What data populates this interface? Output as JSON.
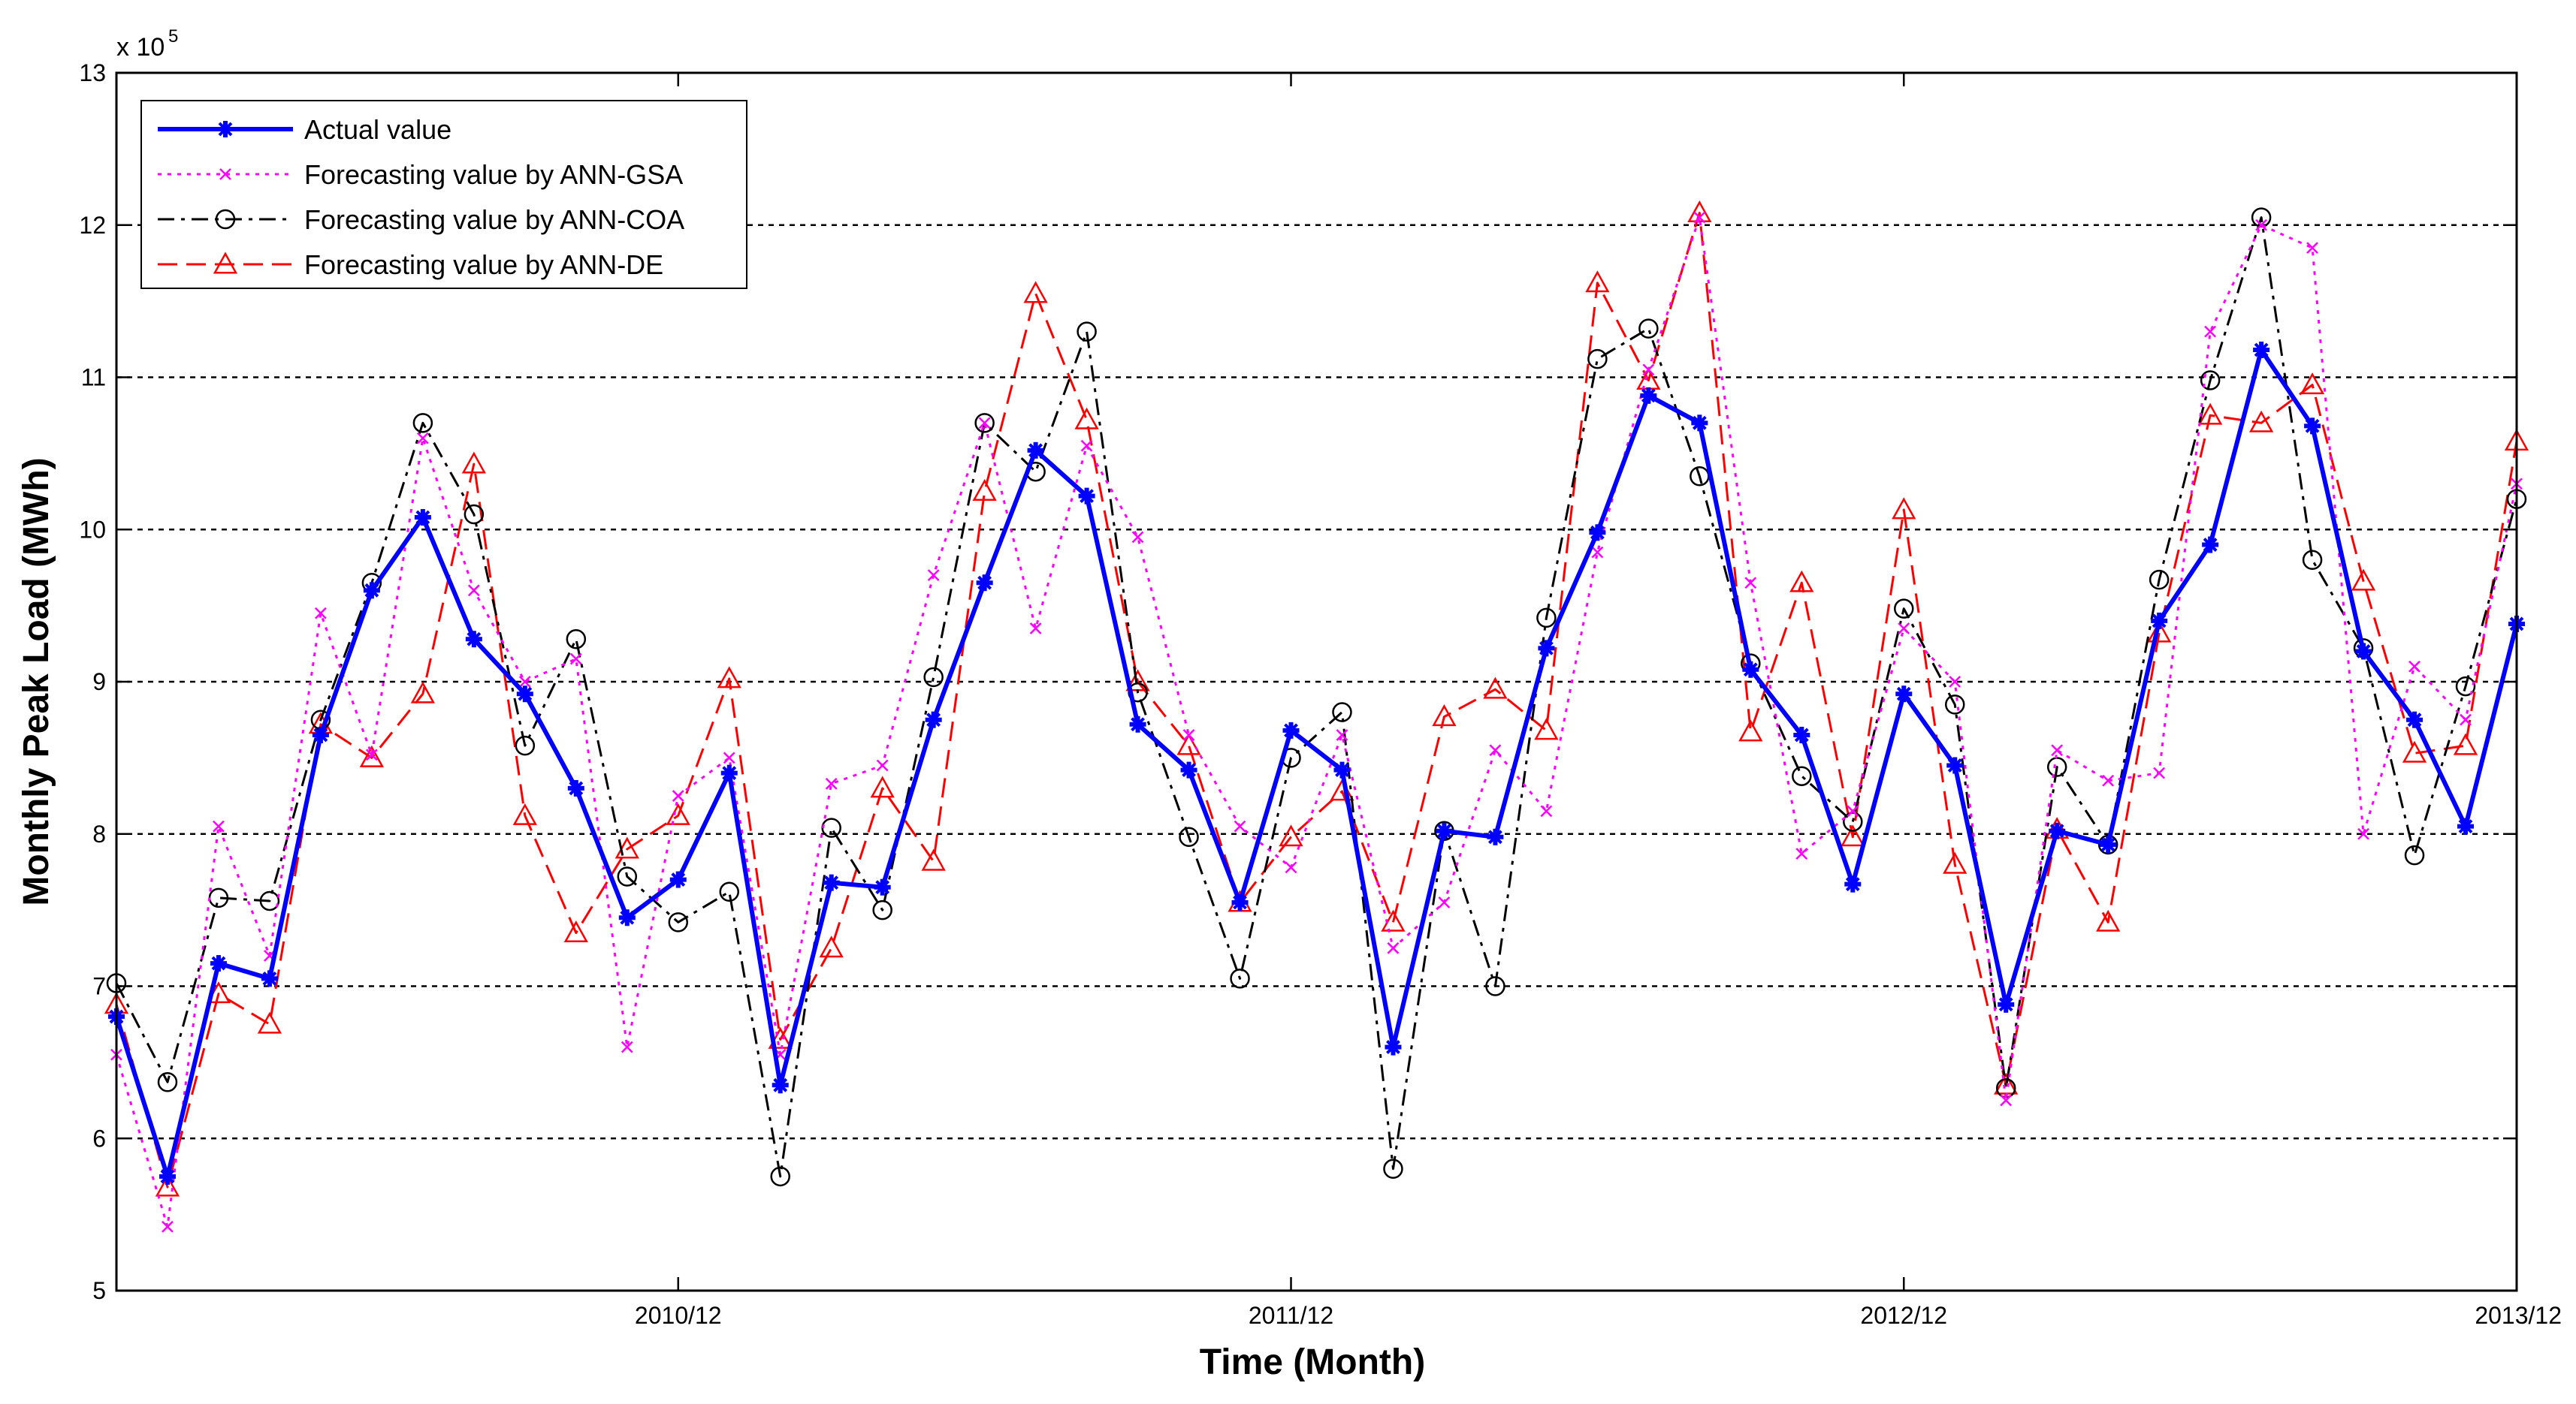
{
  "chart_data": {
    "type": "line",
    "title": "",
    "xlabel": "Time (Month)",
    "ylabel": "Monthly Peak Load (MWh)",
    "y_multiplier_label": "x 10",
    "y_multiplier_exponent": "5",
    "xlim": [
      1,
      48
    ],
    "ylim": [
      5,
      13
    ],
    "yticks": [
      5,
      6,
      7,
      8,
      9,
      10,
      11,
      12,
      13
    ],
    "ytick_labels": [
      "5",
      "6",
      "7",
      "8",
      "9",
      "10",
      "11",
      "12",
      "13"
    ],
    "xticks": [
      12,
      24,
      36,
      48
    ],
    "xtick_labels": [
      "2010/12",
      "2011/12",
      "2012/12",
      "2013/12"
    ],
    "grid": "horizontal dashed",
    "legend_position": "top-left",
    "series": [
      {
        "name": "Actual value",
        "color": "#0000ff",
        "style": "solid",
        "marker": "star",
        "values": [
          6.8,
          5.75,
          7.15,
          7.05,
          8.65,
          9.6,
          10.08,
          9.28,
          8.92,
          8.3,
          7.45,
          7.7,
          8.4,
          6.35,
          7.68,
          7.65,
          8.75,
          9.65,
          10.52,
          10.22,
          8.72,
          8.42,
          7.55,
          8.68,
          8.42,
          6.6,
          8.02,
          7.98,
          9.22,
          9.98,
          10.88,
          10.7,
          9.08,
          8.65,
          7.67,
          8.92,
          8.45,
          6.88,
          8.02,
          7.93,
          9.4,
          9.9,
          11.18,
          10.68,
          9.2,
          8.75,
          8.05,
          9.38
        ]
      },
      {
        "name": "Forecasting value by ANN-GSA",
        "color": "#ff00ff",
        "style": "dotted",
        "marker": "x",
        "values": [
          6.55,
          5.42,
          8.05,
          7.2,
          9.45,
          8.52,
          10.6,
          9.6,
          9.0,
          9.15,
          6.6,
          8.25,
          8.5,
          6.55,
          8.33,
          8.45,
          9.7,
          10.7,
          9.35,
          10.55,
          9.95,
          8.65,
          8.05,
          7.78,
          8.65,
          7.25,
          7.55,
          8.55,
          8.15,
          9.85,
          11.05,
          12.05,
          9.65,
          7.87,
          8.15,
          9.35,
          9.0,
          6.25,
          8.55,
          8.35,
          8.4,
          11.3,
          12.0,
          11.85,
          8.0,
          9.1,
          8.75,
          10.3
        ]
      },
      {
        "name": "Forecasting value by ANN-COA",
        "color": "#000000",
        "style": "dashdot",
        "marker": "circle",
        "values": [
          7.02,
          6.37,
          7.58,
          7.56,
          8.75,
          9.65,
          10.7,
          10.1,
          8.58,
          9.28,
          7.72,
          7.42,
          7.62,
          5.75,
          8.04,
          7.5,
          9.03,
          10.7,
          10.38,
          11.3,
          8.93,
          7.98,
          7.05,
          8.5,
          8.8,
          5.8,
          8.02,
          7.0,
          9.42,
          11.12,
          11.32,
          10.35,
          9.12,
          8.38,
          8.08,
          9.48,
          8.85,
          6.33,
          8.44,
          7.93,
          9.67,
          10.98,
          12.05,
          9.8,
          9.22,
          7.86,
          8.97,
          10.2
        ]
      },
      {
        "name": "Forecasting value by ANN-DE",
        "color": "#ff0000",
        "style": "dashed",
        "marker": "triangle",
        "values": [
          6.88,
          5.68,
          6.95,
          6.75,
          8.72,
          8.5,
          8.92,
          10.43,
          8.12,
          7.35,
          7.9,
          8.12,
          9.02,
          6.65,
          7.25,
          8.3,
          7.82,
          10.25,
          11.55,
          10.72,
          9.0,
          8.58,
          7.55,
          7.98,
          8.28,
          7.42,
          8.77,
          8.95,
          8.68,
          11.62,
          10.98,
          12.08,
          8.67,
          9.65,
          7.98,
          10.13,
          7.8,
          6.35,
          8.03,
          7.42,
          9.32,
          10.75,
          10.7,
          10.95,
          9.66,
          8.53,
          8.58,
          10.58
        ]
      }
    ]
  }
}
